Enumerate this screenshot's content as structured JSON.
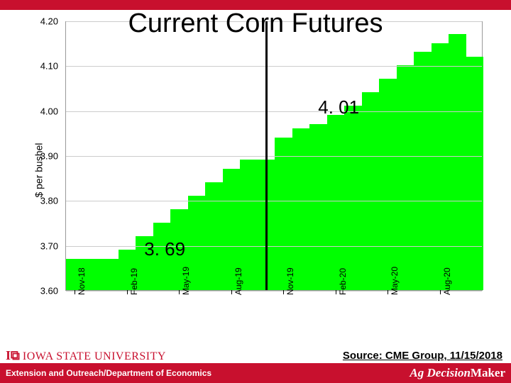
{
  "title": "Current Corn Futures",
  "chart": {
    "type": "bar",
    "ylabel": "$ per bushel",
    "ylim": [
      3.6,
      4.2
    ],
    "ytick_step": 0.1,
    "yticks": [
      "3.60",
      "3.70",
      "3.80",
      "3.90",
      "4.00",
      "4.10",
      "4.20"
    ],
    "xlabels": [
      "Nov-18",
      "Feb-19",
      "May-19",
      "Aug-19",
      "Nov-19",
      "Feb-20",
      "May-20",
      "Aug-20"
    ],
    "bar_color": "#00ff00",
    "grid_color": "#cccccc",
    "background_color": "#ffffff",
    "tick_fontsize": 13,
    "label_fontsize": 14,
    "values": [
      3.67,
      3.67,
      3.67,
      3.69,
      3.72,
      3.75,
      3.78,
      3.81,
      3.84,
      3.87,
      3.89,
      3.89,
      3.94,
      3.96,
      3.97,
      3.99,
      4.01,
      4.04,
      4.07,
      4.1,
      4.13,
      4.15,
      4.17,
      4.12
    ],
    "n_bars_per_xlabel": 3,
    "vline_after_bar_index": 11,
    "annotations": [
      {
        "text": "3. 69",
        "value_y": 3.695,
        "bar_index": 4
      },
      {
        "text": "4. 01",
        "value_y": 4.01,
        "bar_index": 14
      }
    ]
  },
  "source": "Source: CME Group, 11/15/2018",
  "footer": {
    "department": "Extension and Outreach/Department of Economics",
    "university_mark": "IOWA STATE",
    "university_word": "UNIVERSITY",
    "brand": "Ag Decision",
    "brand2": "Maker"
  },
  "colors": {
    "accent_red": "#c8102e",
    "bar_green": "#00ff00",
    "white": "#ffffff",
    "black": "#000000"
  }
}
